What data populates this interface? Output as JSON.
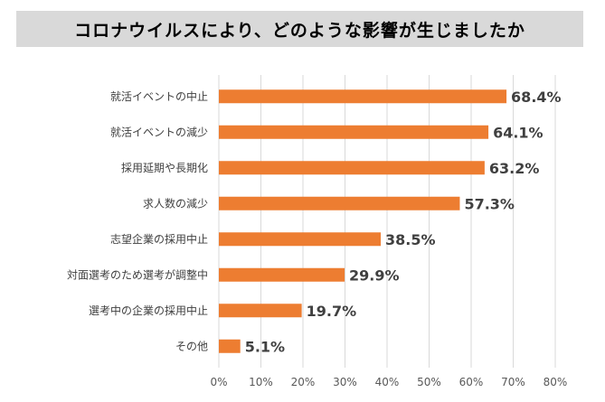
{
  "chart_data": {
    "type": "bar",
    "orientation": "horizontal",
    "title": "コロナウイルスにより、どのような影響が生じましたか",
    "categories": [
      "就活イベントの中止",
      "就活イベントの減少",
      "採用延期や長期化",
      "求人数の減少",
      "志望企業の採用中止",
      "対面選考のため選考が調整中",
      "選考中の企業の採用中止",
      "その他"
    ],
    "values": [
      68.4,
      64.1,
      63.2,
      57.3,
      38.5,
      29.9,
      19.7,
      5.1
    ],
    "value_labels": [
      "68.4%",
      "64.1%",
      "63.2%",
      "57.3%",
      "38.5%",
      "29.9%",
      "19.7%",
      "5.1%"
    ],
    "xlim": [
      0,
      80
    ],
    "xticks": [
      "0%",
      "10%",
      "20%",
      "30%",
      "40%",
      "50%",
      "60%",
      "70%",
      "80%"
    ],
    "grid": true,
    "colors": {
      "bar": "#ed7d31",
      "grid": "#d9d9d9",
      "title_background": "#d9d9d9"
    }
  }
}
